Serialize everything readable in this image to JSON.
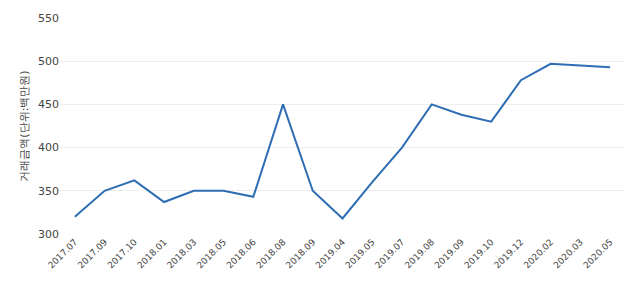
{
  "chart_data": {
    "type": "line",
    "categories": [
      "2017.07",
      "2017.09",
      "2017.10",
      "2018.01",
      "2018.03",
      "2018.05",
      "2018.06",
      "2018.08",
      "2018.09",
      "2019.04",
      "2019.05",
      "2019.07",
      "2019.08",
      "2019.09",
      "2019.10",
      "2019.12",
      "2020.02",
      "2020.03",
      "2020.05"
    ],
    "values": [
      320,
      350,
      362,
      337,
      350,
      350,
      343,
      450,
      350,
      318,
      360,
      400,
      450,
      438,
      430,
      478,
      497,
      495,
      493
    ],
    "color": "#2e6db4",
    "ylabel": "거래금액(단위:백만원)",
    "ylim": [
      300,
      550
    ],
    "yticks": [
      300,
      350,
      400,
      450,
      500,
      550
    ],
    "grid": true
  }
}
